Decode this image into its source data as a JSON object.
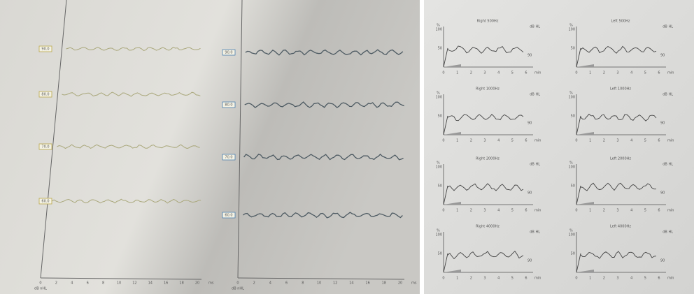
{
  "abr_pages": [
    {
      "level_labels": [
        "90.0",
        "80.0",
        "70.0",
        "60.0"
      ],
      "x_ticks": [
        "0",
        "2",
        "4",
        "6",
        "8",
        "10",
        "12",
        "14",
        "16",
        "18",
        "20"
      ],
      "x_unit": "ms",
      "y_unit": "dB nHL"
    },
    {
      "level_labels": [
        "90.0",
        "80.0",
        "70.0",
        "60.0"
      ],
      "x_ticks": [
        "0",
        "2",
        "4",
        "6",
        "8",
        "10",
        "12",
        "14",
        "16",
        "18",
        "20"
      ],
      "x_unit": "ms",
      "y_unit": "dB nHL"
    }
  ],
  "decay_panels": [
    {
      "title": "Right 500Hz",
      "unit": "dB HL",
      "level": "90"
    },
    {
      "title": "Left 500Hz",
      "unit": "dB HL",
      "level": "90"
    },
    {
      "title": "Right 1000Hz",
      "unit": "dB HL",
      "level": "90"
    },
    {
      "title": "Left 1000Hz",
      "unit": "dB HL",
      "level": "90"
    },
    {
      "title": "Right 2000Hz",
      "unit": "dB HL",
      "level": "90"
    },
    {
      "title": "Left 2000Hz",
      "unit": "dB HL",
      "level": "90"
    },
    {
      "title": "Right 4000Hz",
      "unit": "dB HL",
      "level": "90"
    },
    {
      "title": "Left 4000Hz",
      "unit": "dB HL",
      "level": "90"
    }
  ],
  "decay_axis": {
    "y_unit": "%",
    "y_ticks": [
      "100",
      "50"
    ],
    "x_ticks": [
      "0",
      "1",
      "2",
      "3",
      "4",
      "5",
      "6"
    ],
    "x_unit": "min"
  }
}
